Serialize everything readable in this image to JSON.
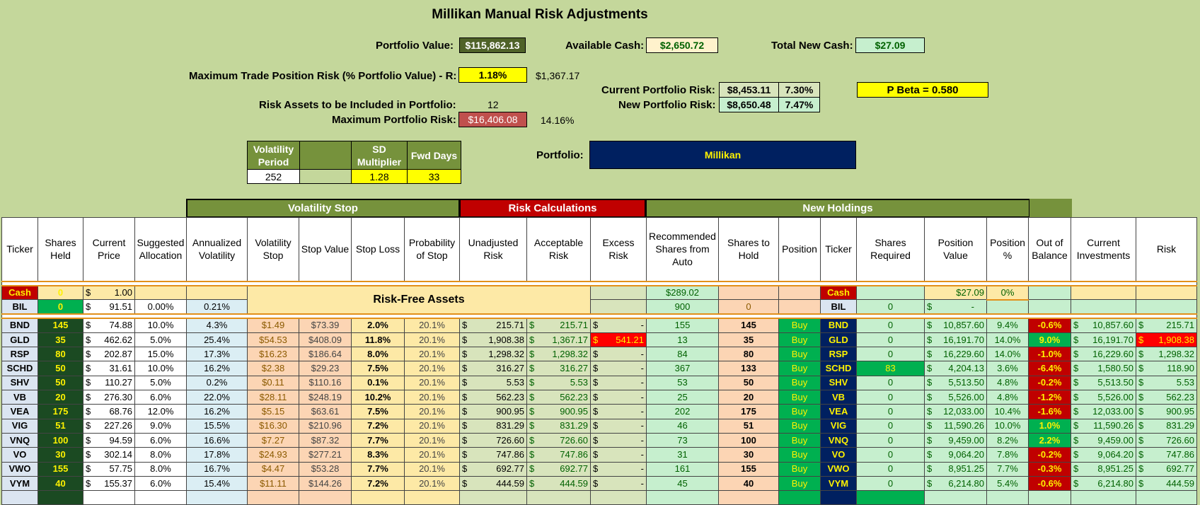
{
  "title": "Millikan Manual Risk Adjustments",
  "summary": {
    "portfolio_value_label": "Portfolio Value:",
    "portfolio_value": "$115,862.13",
    "available_cash_label": "Available Cash:",
    "available_cash": "$2,650.72",
    "total_new_cash_label": "Total New Cash:",
    "total_new_cash": "$27.09",
    "max_trade_risk_label": "Maximum Trade Position Risk (% Portfolio Value) - R:",
    "max_trade_risk_pct": "1.18%",
    "max_trade_risk_value": "$1,367.17",
    "current_portfolio_risk_label": "Current Portfolio Risk:",
    "current_portfolio_risk": "$8,453.11",
    "current_portfolio_risk_pct": "7.30%",
    "new_portfolio_risk_label": "New Portfolio Risk:",
    "new_portfolio_risk": "$8,650.48",
    "new_portfolio_risk_pct": "7.47%",
    "pbeta": "P Beta = 0.580",
    "risk_assets_label": "Risk Assets to be Included in Portfolio:",
    "risk_assets": "12",
    "max_portfolio_risk_label": "Maximum Portfolio Risk:",
    "max_portfolio_risk": "$16,406.08",
    "max_portfolio_risk_pct": "14.16%",
    "portfolio_label": "Portfolio:",
    "portfolio_name": "Millikan"
  },
  "params": {
    "vol_period_label": "Volatility Period",
    "sd_mult_label": "SD Multiplier",
    "fwd_days_label": "Fwd Days",
    "vol_period": "252",
    "sd_mult": "1.28",
    "fwd_days": "33"
  },
  "groups": {
    "volatility_stop": "Volatility Stop",
    "risk_calc": "Risk Calculations",
    "new_holdings": "New Holdings",
    "risk_free": "Risk-Free Assets"
  },
  "headers": [
    "Ticker",
    "Shares Held",
    "Current Price",
    "Suggested Allocation",
    "Annualized Volatility",
    "Volatility Stop",
    "Stop Value",
    "Stop Loss",
    "Probability of Stop",
    "Unadjusted Risk",
    "Acceptable Risk",
    "Excess Risk",
    "Recommended Shares from Auto",
    "Shares to Hold",
    "Position",
    "Ticker",
    "Shares Required",
    "Position Value",
    "Position %",
    "Out of Balance",
    "Current Investments",
    "Risk"
  ],
  "cash_row": {
    "ticker": "Cash",
    "shares": "0",
    "price": "1.00",
    "rec": "$289.02",
    "ticker2": "Cash",
    "pv": "$27.09",
    "pp": "0%"
  },
  "bil_row": {
    "ticker": "BIL",
    "shares": "0",
    "price": "91.51",
    "alloc": "0.00%",
    "vol": "0.21%",
    "rec": "900",
    "hold": "0",
    "ticker2": "BIL",
    "req": "0",
    "pv": "-"
  },
  "rows": [
    {
      "t": "BND",
      "s": "145",
      "p": "74.88",
      "a": "10.0%",
      "v": "4.3%",
      "vs": "$1.49",
      "sv": "$73.39",
      "sl": "2.0%",
      "ps": "20.1%",
      "ur": "215.71",
      "ar": "215.71",
      "er": "-",
      "rec": "155",
      "hold": "145",
      "pos": "Buy",
      "req": "0",
      "pv": "10,857.60",
      "pp": "9.4%",
      "ob": "-0.6%",
      "ci": "10,857.60",
      "rk": "215.71"
    },
    {
      "t": "GLD",
      "s": "35",
      "p": "462.62",
      "a": "5.0%",
      "v": "25.4%",
      "vs": "$54.53",
      "sv": "$408.09",
      "sl": "11.8%",
      "ps": "20.1%",
      "ur": "1,908.38",
      "ar": "1,367.17",
      "er": "541.21",
      "rec": "13",
      "hold": "35",
      "pos": "Buy",
      "req": "0",
      "pv": "16,191.70",
      "pp": "14.0%",
      "ob": "9.0%",
      "ci": "16,191.70",
      "rk": "1,908.38"
    },
    {
      "t": "RSP",
      "s": "80",
      "p": "202.87",
      "a": "15.0%",
      "v": "17.3%",
      "vs": "$16.23",
      "sv": "$186.64",
      "sl": "8.0%",
      "ps": "20.1%",
      "ur": "1,298.32",
      "ar": "1,298.32",
      "er": "-",
      "rec": "84",
      "hold": "80",
      "pos": "Buy",
      "req": "0",
      "pv": "16,229.60",
      "pp": "14.0%",
      "ob": "-1.0%",
      "ci": "16,229.60",
      "rk": "1,298.32"
    },
    {
      "t": "SCHD",
      "s": "50",
      "p": "31.61",
      "a": "10.0%",
      "v": "16.2%",
      "vs": "$2.38",
      "sv": "$29.23",
      "sl": "7.5%",
      "ps": "20.1%",
      "ur": "316.27",
      "ar": "316.27",
      "er": "-",
      "rec": "367",
      "hold": "133",
      "pos": "Buy",
      "req": "83",
      "pv": "4,204.13",
      "pp": "3.6%",
      "ob": "-6.4%",
      "ci": "1,580.50",
      "rk": "118.90"
    },
    {
      "t": "SHV",
      "s": "50",
      "p": "110.27",
      "a": "5.0%",
      "v": "0.2%",
      "vs": "$0.11",
      "sv": "$110.16",
      "sl": "0.1%",
      "ps": "20.1%",
      "ur": "5.53",
      "ar": "5.53",
      "er": "-",
      "rec": "53",
      "hold": "50",
      "pos": "Buy",
      "req": "0",
      "pv": "5,513.50",
      "pp": "4.8%",
      "ob": "-0.2%",
      "ci": "5,513.50",
      "rk": "5.53"
    },
    {
      "t": "VB",
      "s": "20",
      "p": "276.30",
      "a": "6.0%",
      "v": "22.0%",
      "vs": "$28.11",
      "sv": "$248.19",
      "sl": "10.2%",
      "ps": "20.1%",
      "ur": "562.23",
      "ar": "562.23",
      "er": "-",
      "rec": "25",
      "hold": "20",
      "pos": "Buy",
      "req": "0",
      "pv": "5,526.00",
      "pp": "4.8%",
      "ob": "-1.2%",
      "ci": "5,526.00",
      "rk": "562.23"
    },
    {
      "t": "VEA",
      "s": "175",
      "p": "68.76",
      "a": "12.0%",
      "v": "16.2%",
      "vs": "$5.15",
      "sv": "$63.61",
      "sl": "7.5%",
      "ps": "20.1%",
      "ur": "900.95",
      "ar": "900.95",
      "er": "-",
      "rec": "202",
      "hold": "175",
      "pos": "Buy",
      "req": "0",
      "pv": "12,033.00",
      "pp": "10.4%",
      "ob": "-1.6%",
      "ci": "12,033.00",
      "rk": "900.95"
    },
    {
      "t": "VIG",
      "s": "51",
      "p": "227.26",
      "a": "9.0%",
      "v": "15.5%",
      "vs": "$16.30",
      "sv": "$210.96",
      "sl": "7.2%",
      "ps": "20.1%",
      "ur": "831.29",
      "ar": "831.29",
      "er": "-",
      "rec": "46",
      "hold": "51",
      "pos": "Buy",
      "req": "0",
      "pv": "11,590.26",
      "pp": "10.0%",
      "ob": "1.0%",
      "ci": "11,590.26",
      "rk": "831.29"
    },
    {
      "t": "VNQ",
      "s": "100",
      "p": "94.59",
      "a": "6.0%",
      "v": "16.6%",
      "vs": "$7.27",
      "sv": "$87.32",
      "sl": "7.7%",
      "ps": "20.1%",
      "ur": "726.60",
      "ar": "726.60",
      "er": "-",
      "rec": "73",
      "hold": "100",
      "pos": "Buy",
      "req": "0",
      "pv": "9,459.00",
      "pp": "8.2%",
      "ob": "2.2%",
      "ci": "9,459.00",
      "rk": "726.60"
    },
    {
      "t": "VO",
      "s": "30",
      "p": "302.14",
      "a": "8.0%",
      "v": "17.8%",
      "vs": "$24.93",
      "sv": "$277.21",
      "sl": "8.3%",
      "ps": "20.1%",
      "ur": "747.86",
      "ar": "747.86",
      "er": "-",
      "rec": "31",
      "hold": "30",
      "pos": "Buy",
      "req": "0",
      "pv": "9,064.20",
      "pp": "7.8%",
      "ob": "-0.2%",
      "ci": "9,064.20",
      "rk": "747.86"
    },
    {
      "t": "VWO",
      "s": "155",
      "p": "57.75",
      "a": "8.0%",
      "v": "16.7%",
      "vs": "$4.47",
      "sv": "$53.28",
      "sl": "7.7%",
      "ps": "20.1%",
      "ur": "692.77",
      "ar": "692.77",
      "er": "-",
      "rec": "161",
      "hold": "155",
      "pos": "Buy",
      "req": "0",
      "pv": "8,951.25",
      "pp": "7.7%",
      "ob": "-0.3%",
      "ci": "8,951.25",
      "rk": "692.77"
    },
    {
      "t": "VYM",
      "s": "40",
      "p": "155.37",
      "a": "6.0%",
      "v": "15.4%",
      "vs": "$11.11",
      "sv": "$144.26",
      "sl": "7.2%",
      "ps": "20.1%",
      "ur": "444.59",
      "ar": "444.59",
      "er": "-",
      "rec": "45",
      "hold": "40",
      "pos": "Buy",
      "req": "0",
      "pv": "6,214.80",
      "pp": "5.4%",
      "ob": "-0.6%",
      "ci": "6,214.80",
      "rk": "444.59"
    }
  ],
  "currency": "$",
  "colors": {
    "ob_negative": "#c00000",
    "ob_positive": "#00b050",
    "ob_high": "#00b050"
  }
}
